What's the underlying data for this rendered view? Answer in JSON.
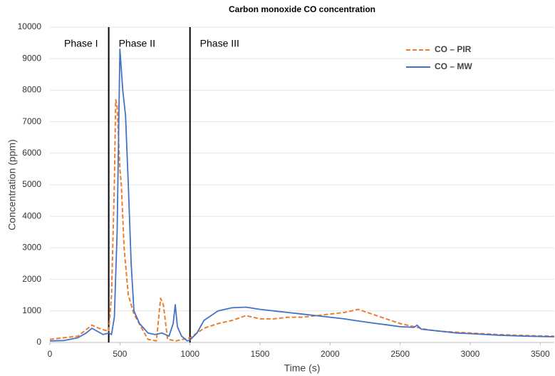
{
  "chart_data": {
    "type": "line",
    "title": "Carbon monoxide CO concentration",
    "xlabel": "Time (s)",
    "ylabel": "Concentration (ppm)",
    "xlim": [
      0,
      3600
    ],
    "xticks": [
      0,
      500,
      1000,
      1500,
      2000,
      2500,
      3000,
      3500
    ],
    "ylim": [
      0,
      10000
    ],
    "yticks": [
      0,
      1000,
      2000,
      3000,
      4000,
      5000,
      6000,
      7000,
      8000,
      9000,
      10000
    ],
    "grid": true,
    "legend": "upper right",
    "phase_boundaries": [
      420,
      1000
    ],
    "phases": [
      "Phase I",
      "Phase II",
      "Phase III"
    ],
    "series": [
      {
        "name": "CO – PIR",
        "color": "#ed7d31",
        "dashed": true,
        "x": [
          0,
          200,
          300,
          350,
          420,
          440,
          460,
          470,
          480,
          500,
          510,
          530,
          560,
          600,
          650,
          700,
          760,
          790,
          810,
          840,
          900,
          950,
          1000,
          1100,
          1200,
          1300,
          1400,
          1500,
          1600,
          1700,
          1800,
          1900,
          2000,
          2100,
          2200,
          2300,
          2400,
          2500,
          2600,
          2700,
          2800,
          3000,
          3200,
          3400,
          3600
        ],
        "values": [
          100,
          200,
          550,
          450,
          350,
          1500,
          5000,
          7700,
          7500,
          5500,
          5000,
          3000,
          1500,
          900,
          500,
          100,
          50,
          1400,
          1200,
          100,
          50,
          100,
          150,
          450,
          600,
          700,
          850,
          750,
          750,
          800,
          800,
          850,
          900,
          950,
          1050,
          900,
          750,
          600,
          500,
          400,
          350,
          300,
          250,
          220,
          200
        ]
      },
      {
        "name": "CO – MW",
        "color": "#4472c4",
        "dashed": false,
        "x": [
          0,
          100,
          200,
          260,
          300,
          340,
          380,
          420,
          440,
          460,
          480,
          500,
          520,
          540,
          560,
          580,
          600,
          640,
          700,
          750,
          800,
          850,
          880,
          895,
          910,
          940,
          980,
          1000,
          1050,
          1100,
          1200,
          1300,
          1400,
          1500,
          1600,
          1700,
          1800,
          1900,
          2000,
          2100,
          2200,
          2300,
          2400,
          2500,
          2600,
          2620,
          2650,
          2800,
          2900,
          3000,
          3200,
          3400,
          3600
        ],
        "values": [
          50,
          60,
          150,
          300,
          450,
          350,
          250,
          300,
          250,
          800,
          3500,
          9300,
          8000,
          7200,
          5000,
          2500,
          1000,
          600,
          300,
          250,
          300,
          200,
          600,
          1200,
          500,
          200,
          50,
          80,
          300,
          700,
          1000,
          1100,
          1120,
          1050,
          1000,
          950,
          900,
          850,
          800,
          750,
          680,
          620,
          560,
          500,
          480,
          550,
          420,
          350,
          300,
          280,
          230,
          200,
          180
        ]
      }
    ]
  }
}
